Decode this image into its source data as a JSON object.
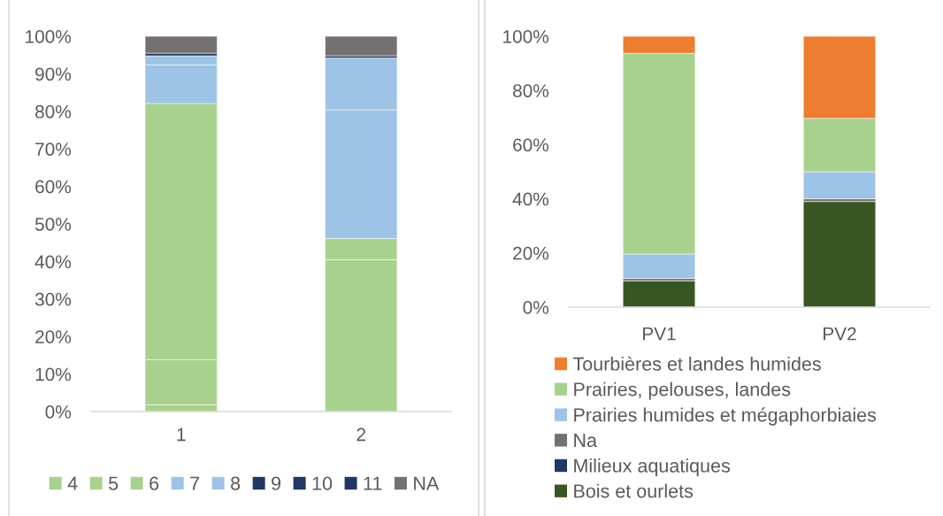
{
  "chart_data": [
    {
      "type": "bar",
      "stacked": true,
      "categories": [
        "1",
        "2"
      ],
      "series": [
        {
          "name": "4",
          "color": "#a9d18e",
          "values": [
            1.8,
            40.5
          ]
        },
        {
          "name": "5",
          "color": "#a9d18e",
          "values": [
            12,
            5.6
          ]
        },
        {
          "name": "6",
          "color": "#a9d18e",
          "values": [
            68.3,
            0
          ]
        },
        {
          "name": "7",
          "color": "#9dc3e6",
          "values": [
            10.3,
            34.3
          ]
        },
        {
          "name": "8",
          "color": "#9dc3e6",
          "values": [
            2.4,
            13.8
          ]
        },
        {
          "name": "9",
          "color": "#203864",
          "values": [
            0.7,
            0.6
          ]
        },
        {
          "name": "10",
          "color": "#203864",
          "values": [
            0,
            0
          ]
        },
        {
          "name": "11",
          "color": "#203864",
          "values": [
            0,
            0
          ]
        },
        {
          "name": "NA",
          "color": "#767171",
          "values": [
            4.5,
            5.2
          ]
        }
      ],
      "ylim": [
        0,
        100
      ],
      "yticks": [
        {
          "value": 0,
          "label": "0%"
        },
        {
          "value": 10,
          "label": "10%"
        },
        {
          "value": 20,
          "label": "20%"
        },
        {
          "value": 30,
          "label": "30%"
        },
        {
          "value": 40,
          "label": "40%"
        },
        {
          "value": 50,
          "label": "50%"
        },
        {
          "value": 60,
          "label": "60%"
        },
        {
          "value": 70,
          "label": "70%"
        },
        {
          "value": 80,
          "label": "80%"
        },
        {
          "value": 90,
          "label": "90%"
        },
        {
          "value": 100,
          "label": "100%"
        }
      ],
      "legend": "bottom"
    },
    {
      "type": "bar",
      "stacked": true,
      "categories": [
        "PV1",
        "PV2"
      ],
      "series": [
        {
          "name": "Bois et ourlets",
          "color": "#375623",
          "values": [
            9.7,
            39
          ]
        },
        {
          "name": "Milieux aquatiques",
          "color": "#203864",
          "values": [
            0,
            0
          ]
        },
        {
          "name": "Na",
          "color": "#767171",
          "values": [
            0.9,
            1
          ]
        },
        {
          "name": "Prairies humides et mégaphorbiaies",
          "color": "#9dc3e6",
          "values": [
            9,
            10
          ]
        },
        {
          "name": "Prairies, pelouses, landes",
          "color": "#a9d18e",
          "values": [
            74.1,
            19.7
          ]
        },
        {
          "name": "Tourbières et landes humides",
          "color": "#ed7d31",
          "values": [
            6.3,
            30.3
          ]
        }
      ],
      "ylim": [
        0,
        100
      ],
      "yticks": [
        {
          "value": 0,
          "label": "0%"
        },
        {
          "value": 20,
          "label": "20%"
        },
        {
          "value": 40,
          "label": "40%"
        },
        {
          "value": 60,
          "label": "60%"
        },
        {
          "value": 80,
          "label": "80%"
        },
        {
          "value": 100,
          "label": "100%"
        }
      ],
      "legend": "bottom"
    }
  ]
}
